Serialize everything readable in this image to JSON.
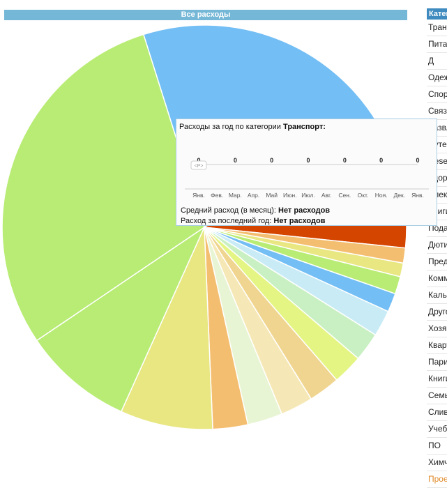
{
  "chart_data": [
    {
      "type": "pie",
      "title": "Все расходы",
      "values": [
        21.2,
        10.3,
        1.2,
        1.1,
        1.4,
        1.5,
        2.1,
        2.3,
        2.4,
        2.5,
        2.6,
        2.8,
        2.8,
        7.4,
        8.8,
        29.6
      ],
      "colors": [
        "#72bef5",
        "#d44500",
        "#f4be70",
        "#e8e782",
        "#b8ec74",
        "#72bef5",
        "#c8ebf6",
        "#c9f0c2",
        "#e4f583",
        "#f0d590",
        "#f6e8b6",
        "#e8f5d4",
        "#f4be70",
        "#e8e782",
        "#b8ec74",
        "#b8ec74"
      ]
    },
    {
      "type": "line",
      "title": "Расходы за год по категории",
      "category": "Транспорт",
      "categories": [
        "Янв.",
        "Фев.",
        "Мар.",
        "Апр.",
        "Май",
        "Июн.",
        "Июл.",
        "Авг.",
        "Сен.",
        "Окт.",
        "Ноя.",
        "Дек.",
        "Янв."
      ],
      "series": [
        {
          "values": [
            0,
            0,
            0,
            0,
            0,
            0,
            0,
            0,
            0,
            0,
            0,
            0,
            0
          ]
        }
      ],
      "data_labels": [
        "0",
        "0",
        "0",
        "0",
        "0",
        "0",
        "0"
      ],
      "labeled_points": [
        0,
        2,
        4,
        6,
        8,
        10,
        12
      ]
    }
  ],
  "tooltip": {
    "title_prefix": "Расходы за год по категории ",
    "category": "Транспорт:",
    "badge": "<P>",
    "avg_label": "Средний расход (в месяц): ",
    "avg_value": "Нет расходов",
    "year_label": "Расход за последний год: ",
    "year_value": "Нет расходов"
  },
  "category_list": {
    "header": "Категории",
    "items": [
      "Транспорт",
      "Питание",
      "Д",
      "Одежда",
      "Спорт",
      "Связь",
      "Развлечения",
      "Путешествия",
      "Reserve",
      "Здоровье",
      "Электроника",
      "Книги",
      "Подарки",
      "Дюти",
      "Предметы",
      "Коммунальные",
      "Кальян",
      "Другое",
      "Хозяйство",
      "Квартира",
      "Парикмахер",
      "Книги",
      "Семья",
      "Сливы",
      "Учеба",
      "ПО",
      "Химчистка",
      "Проезд"
    ]
  }
}
